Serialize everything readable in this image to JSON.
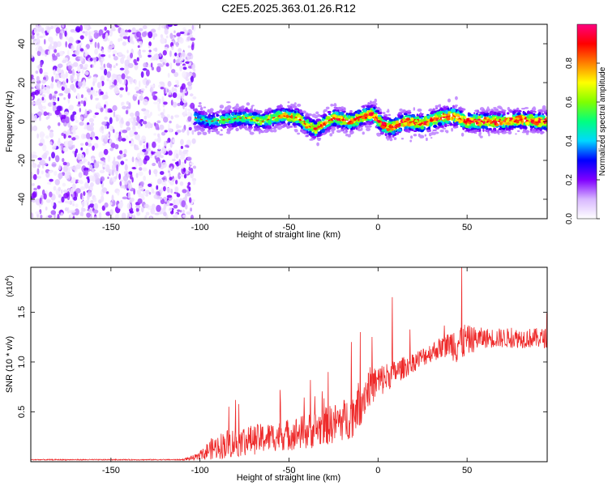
{
  "title": "C2E5.2025.363.01.26.R12",
  "chart_data": [
    {
      "type": "heatmap",
      "title": "C2E5.2025.363.01.26.R12",
      "xlabel": "Height of straight line (km)",
      "ylabel": "Frequency (Hz)",
      "xlim": [
        -195,
        95
      ],
      "ylim": [
        -50,
        50
      ],
      "xticks": [
        -150,
        -100,
        -50,
        0,
        50
      ],
      "yticks": [
        -40,
        -20,
        0,
        20,
        40
      ],
      "colorbar": {
        "label": "Normalized spectral amplitude",
        "range": [
          0,
          1
        ],
        "ticks": [
          0.0,
          0.2,
          0.4,
          0.6,
          0.8
        ],
        "colormap": [
          "#ffffff",
          "#d8b8ff",
          "#8000ff",
          "#0000ff",
          "#00d8ff",
          "#00ff80",
          "#80ff00",
          "#ffff00",
          "#ff8000",
          "#ff0000",
          "#ff0080"
        ]
      },
      "noise_region_km": [
        -195,
        -103
      ],
      "signal_region_km": [
        -103,
        95
      ],
      "ridge": {
        "description": "peak frequency trace",
        "x": [
          -103,
          -95,
          -85,
          -75,
          -65,
          -55,
          -45,
          -40,
          -35,
          -25,
          -15,
          -8,
          -3,
          3,
          8,
          15,
          25,
          35,
          42,
          50,
          60,
          70,
          80,
          90,
          95
        ],
        "y": [
          2,
          0,
          1,
          2,
          0,
          3,
          2,
          -2,
          -4,
          2,
          0,
          3,
          4,
          -2,
          -3,
          0,
          -1,
          2,
          3,
          0,
          0,
          0,
          1,
          0,
          0
        ]
      }
    },
    {
      "type": "line",
      "xlabel": "Height of straight line (km)",
      "ylabel": "SNR (10 * v/v)",
      "scale_label": "(x10",
      "scale_exp": "4",
      "scale_close": ")",
      "xlim": [
        -195,
        95
      ],
      "ylim": [
        0,
        1.95
      ],
      "xticks": [
        -150,
        -100,
        -50,
        0,
        50
      ],
      "yticks": [
        0.5,
        1.0,
        1.5
      ],
      "ytick_labels": [
        "0.5",
        "1.0",
        "1.5"
      ],
      "series": [
        {
          "name": "SNR",
          "color": "#ee2a2a",
          "envelope_x": [
            -195,
            -150,
            -110,
            -100,
            -95,
            -85,
            -70,
            -55,
            -40,
            -25,
            -15,
            -10,
            -5,
            0,
            5,
            10,
            20,
            30,
            40,
            45,
            50,
            60,
            70,
            80,
            95
          ],
          "envelope_mean": [
            0.02,
            0.02,
            0.02,
            0.05,
            0.12,
            0.18,
            0.22,
            0.26,
            0.3,
            0.38,
            0.45,
            0.6,
            0.75,
            0.8,
            0.85,
            0.9,
            1.0,
            1.1,
            1.18,
            1.2,
            1.22,
            1.24,
            1.24,
            1.24,
            1.24
          ],
          "envelope_spread": [
            0.005,
            0.005,
            0.005,
            0.04,
            0.1,
            0.15,
            0.15,
            0.15,
            0.18,
            0.2,
            0.22,
            0.25,
            0.2,
            0.18,
            0.15,
            0.12,
            0.1,
            0.1,
            0.12,
            0.25,
            0.15,
            0.1,
            0.1,
            0.1,
            0.1
          ],
          "peaks": [
            [
              -80,
              0.62
            ],
            [
              -55,
              0.72
            ],
            [
              -38,
              0.82
            ],
            [
              -28,
              0.9
            ],
            [
              -15,
              1.2
            ],
            [
              -10,
              1.3
            ],
            [
              8,
              1.65
            ],
            [
              47,
              1.95
            ]
          ]
        }
      ]
    }
  ]
}
